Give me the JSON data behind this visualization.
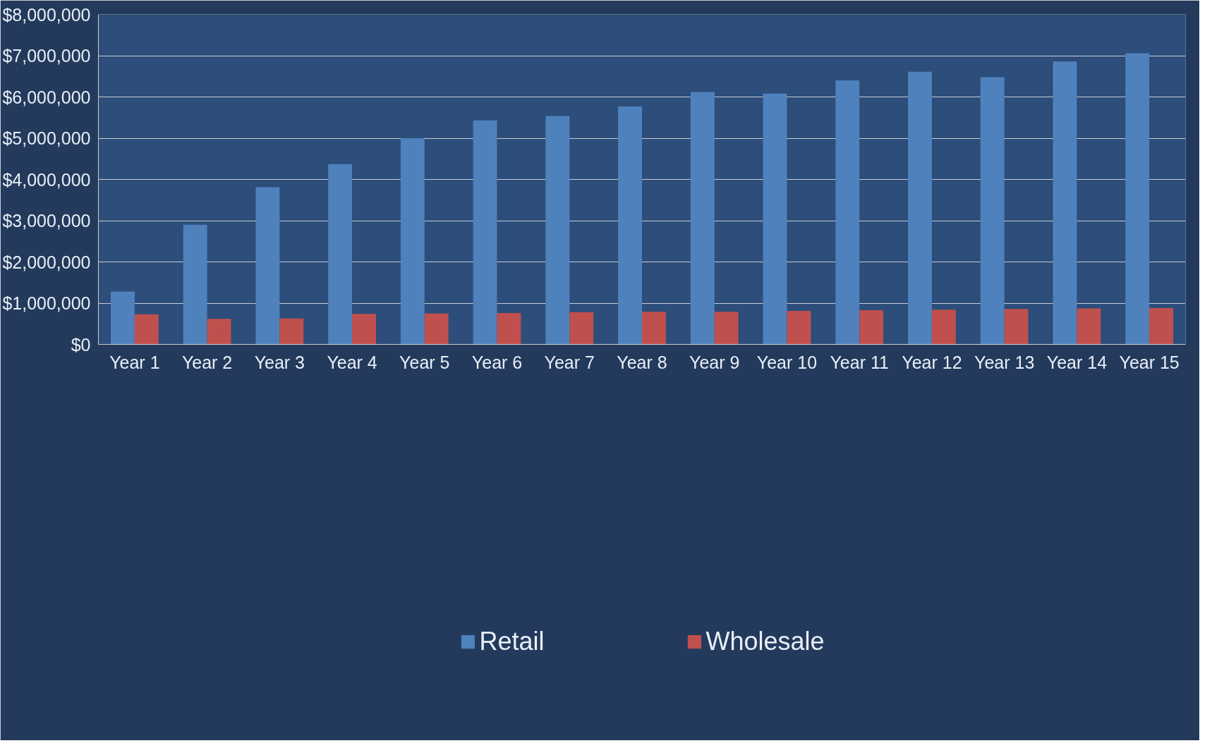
{
  "chart_data": {
    "type": "bar",
    "categories": [
      "Year 1",
      "Year 2",
      "Year 3",
      "Year 4",
      "Year 5",
      "Year 6",
      "Year 7",
      "Year 8",
      "Year 9",
      "Year 10",
      "Year 11",
      "Year 12",
      "Year 13",
      "Year 14",
      "Year 15"
    ],
    "series": [
      {
        "name": "Retail",
        "color": "#4f81bd",
        "values": [
          1280000,
          2900000,
          3810000,
          4370000,
          5000000,
          5430000,
          5540000,
          5770000,
          6120000,
          6080000,
          6400000,
          6610000,
          6480000,
          6860000,
          7060000
        ]
      },
      {
        "name": "Wholesale",
        "color": "#c0504d",
        "values": [
          730000,
          620000,
          630000,
          740000,
          750000,
          760000,
          780000,
          790000,
          790000,
          810000,
          830000,
          840000,
          860000,
          870000,
          880000
        ]
      }
    ],
    "ylim": [
      0,
      8000000
    ],
    "yticks": [
      {
        "value": 0,
        "label": "$0"
      },
      {
        "value": 1000000,
        "label": "$1,000,000"
      },
      {
        "value": 2000000,
        "label": "$2,000,000"
      },
      {
        "value": 3000000,
        "label": "$3,000,000"
      },
      {
        "value": 4000000,
        "label": "$4,000,000"
      },
      {
        "value": 5000000,
        "label": "$5,000,000"
      },
      {
        "value": 6000000,
        "label": "$6,000,000"
      },
      {
        "value": 7000000,
        "label": "$7,000,000"
      },
      {
        "value": 8000000,
        "label": "$8,000,000"
      }
    ],
    "grid": "y",
    "legend": "bottom"
  }
}
